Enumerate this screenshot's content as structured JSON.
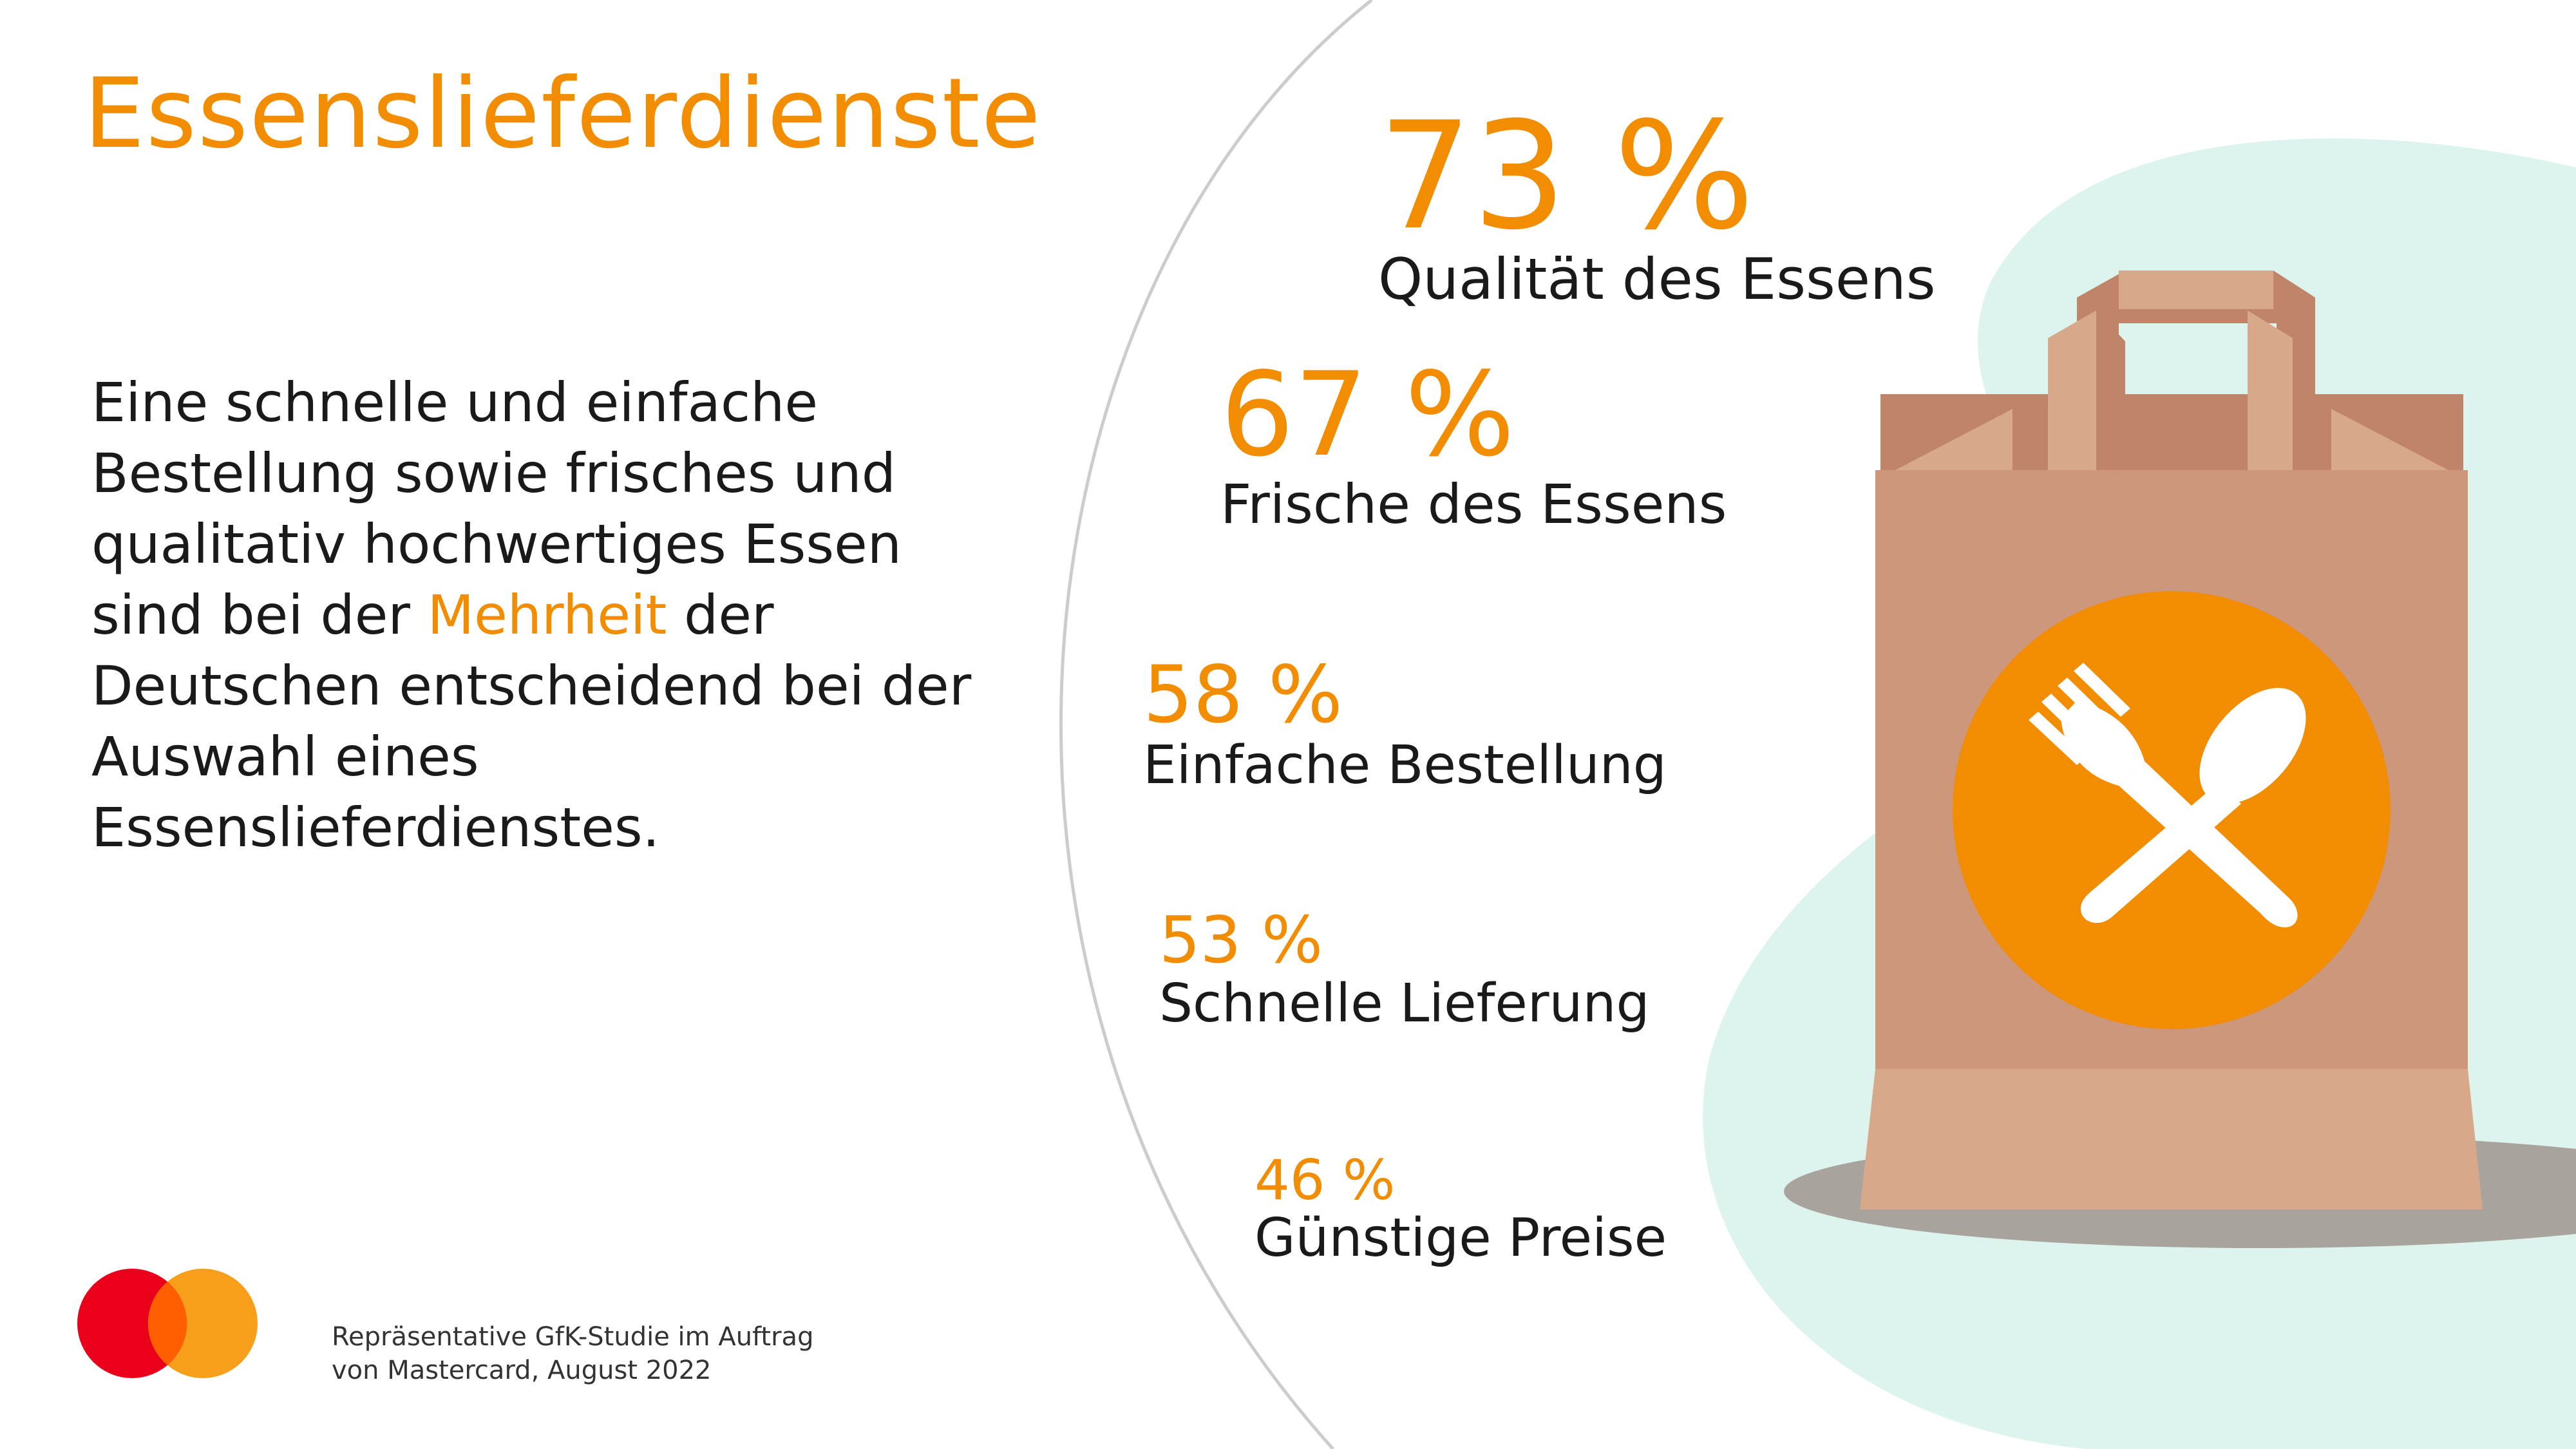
{
  "title": "Essenslieferdienste",
  "intro": {
    "text_before": "Eine schnelle und einfache Bestellung sowie frisches und qualitativ hochwertiges Essen sind bei der ",
    "highlight": "Mehrheit",
    "text_after": " der Deutschen entscheidend bei der Auswahl eines Essenslieferdienstes."
  },
  "stats": [
    {
      "value": "73 %",
      "label": "Qualität des Essens"
    },
    {
      "value": "67 %",
      "label": "Frische des Essens"
    },
    {
      "value": "58 %",
      "label": "Einfache Bestellung"
    },
    {
      "value": "53 %",
      "label": "Schnelle Lieferung"
    },
    {
      "value": "46 %",
      "label": "Günstige Preise"
    }
  ],
  "source": {
    "line1": "Repräsentative GfK-Studie im Auftrag",
    "line2": "von Mastercard, August 2022"
  },
  "illustration": {
    "bag": "paper-bag-icon",
    "emblem": "fork-spoon-icon"
  },
  "colors": {
    "accent": "#F28C00",
    "mint": "#DDF3EE",
    "bag": "#CC977A",
    "bag_light": "#D8A88B",
    "bag_dark": "#C08468",
    "shadow": "#A8A39D",
    "circle_line": "#CCCCCC",
    "mc_red": "#EB001B",
    "mc_orange": "#F79E1B",
    "mc_overlap": "#FF5F00"
  }
}
